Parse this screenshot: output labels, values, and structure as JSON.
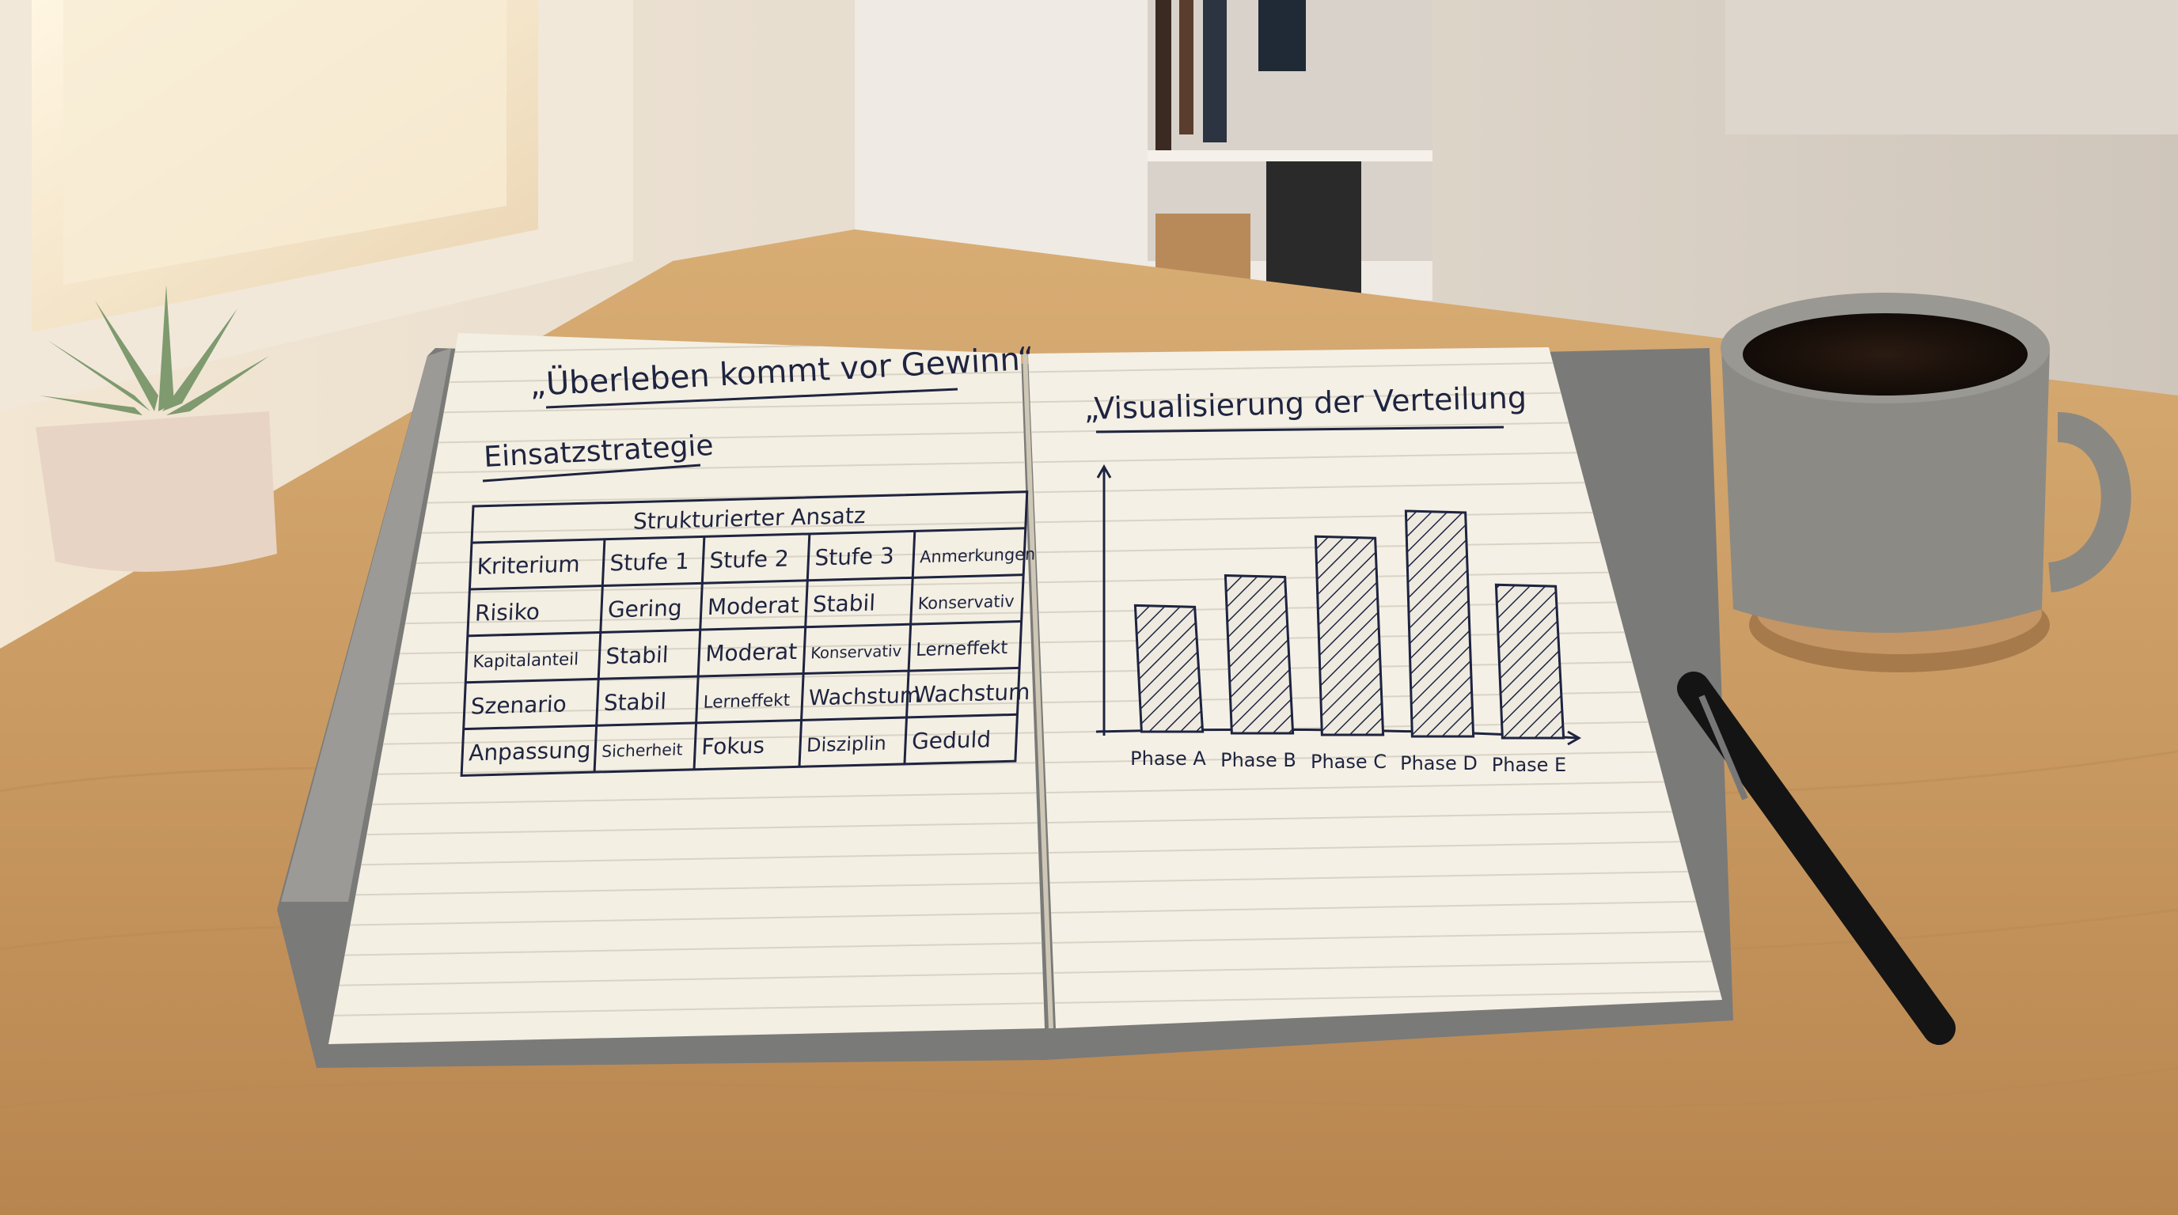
{
  "left_page": {
    "quote": "„Überleben kommt vor Gewinn“",
    "heading": "Einsatzstrategie",
    "table": {
      "title": "Strukturierter Ansatz",
      "headers": [
        "Kriterium",
        "Stufe 1",
        "Stufe 2",
        "Stufe 3",
        "Anmerkungen"
      ],
      "rows": [
        [
          "Risiko",
          "Gering",
          "Moderat",
          "Stabil",
          "Konservativ"
        ],
        [
          "Kapitalanteil",
          "Stabil",
          "Moderat",
          "Konservativ",
          "Lerneffekt"
        ],
        [
          "Szenario",
          "Stabil",
          "Lerneffekt",
          "Wachstum",
          "Wachstum"
        ],
        [
          "Anpassung",
          "Sicherheit",
          "Fokus",
          "Disziplin",
          "Geduld"
        ]
      ]
    }
  },
  "right_page": {
    "heading": "„Visualisierung der Verteilung"
  },
  "chart_data": {
    "type": "bar",
    "title": "„Visualisierung der Verteilung",
    "categories": [
      "Phase A",
      "Phase B",
      "Phase C",
      "Phase D",
      "Phase E"
    ],
    "values": [
      56,
      70,
      88,
      100,
      68
    ],
    "value_note_unit": "relative height (no axis scale printed)",
    "xlabel": "",
    "ylabel": "",
    "ylim": [
      0,
      100
    ],
    "grid": false,
    "bar_fill": "diagonal-hatch"
  },
  "colors": {
    "ink": "#1e2440",
    "paper": "#f4efe3",
    "desk": "#c99a62",
    "mug": "#8c8a84",
    "wall": "#e6ddd0"
  }
}
